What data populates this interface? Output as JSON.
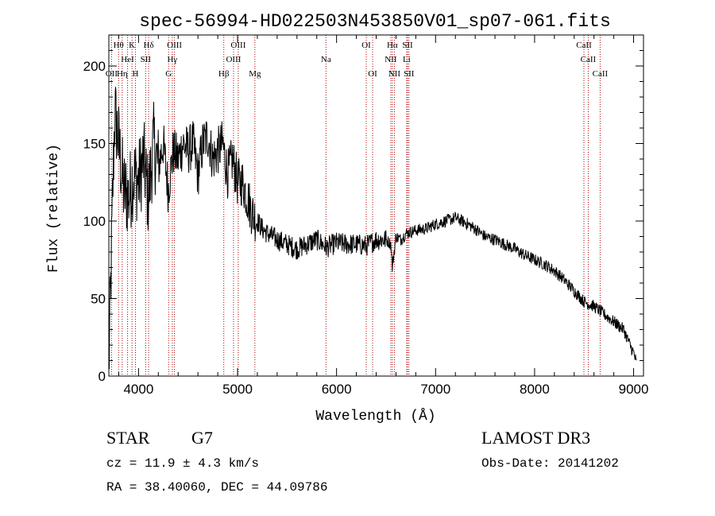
{
  "colors": {
    "spectrum": "#000000",
    "line_marker": "#b00000",
    "axes": "#000000"
  },
  "chart_data": {
    "type": "line",
    "title": "spec-56994-HD022503N453850V01_sp07-061.fits",
    "xlabel": "Wavelength (Å)",
    "ylabel": "Flux (relative)",
    "xlim": [
      3700,
      9100
    ],
    "ylim": [
      0,
      220
    ],
    "xticks": [
      {
        "value": 4000,
        "label": "4000"
      },
      {
        "value": 5000,
        "label": "5000"
      },
      {
        "value": 6000,
        "label": "6000"
      },
      {
        "value": 7000,
        "label": "7000"
      },
      {
        "value": 8000,
        "label": "8000"
      },
      {
        "value": 9000,
        "label": "9000"
      }
    ],
    "yticks": [
      {
        "value": 0,
        "label": "0"
      },
      {
        "value": 50,
        "label": "50"
      },
      {
        "value": 100,
        "label": "100"
      },
      {
        "value": 150,
        "label": "150"
      },
      {
        "value": 200,
        "label": "200"
      }
    ],
    "series": [
      {
        "name": "flux",
        "x": [
          3700,
          3720,
          3740,
          3760,
          3800,
          3850,
          3900,
          3950,
          4000,
          4050,
          4100,
          4150,
          4200,
          4250,
          4300,
          4350,
          4400,
          4450,
          4500,
          4550,
          4600,
          4650,
          4700,
          4750,
          4800,
          4850,
          4900,
          4950,
          5000,
          5050,
          5100,
          5150,
          5200,
          5250,
          5300,
          5400,
          5500,
          5600,
          5700,
          5800,
          5900,
          6000,
          6100,
          6200,
          6300,
          6400,
          6500,
          6550,
          6563,
          6600,
          6650,
          6700,
          6800,
          6900,
          7000,
          7100,
          7200,
          7300,
          7400,
          7500,
          7600,
          7700,
          7800,
          7900,
          8000,
          8100,
          8200,
          8300,
          8400,
          8500,
          8600,
          8700,
          8800,
          8900,
          8950,
          9000,
          9030
        ],
        "values": [
          5,
          60,
          120,
          170,
          150,
          120,
          115,
          130,
          125,
          140,
          115,
          150,
          135,
          150,
          120,
          145,
          140,
          150,
          145,
          150,
          130,
          150,
          155,
          140,
          145,
          150,
          130,
          140,
          125,
          125,
          115,
          105,
          100,
          95,
          92,
          88,
          85,
          82,
          85,
          88,
          83,
          86,
          85,
          85,
          84,
          88,
          88,
          85,
          70,
          90,
          88,
          92,
          94,
          95,
          98,
          100,
          102,
          99,
          95,
          90,
          88,
          85,
          82,
          78,
          75,
          72,
          68,
          62,
          55,
          48,
          45,
          40,
          35,
          30,
          22,
          15,
          8
        ]
      }
    ],
    "line_markers": [
      {
        "label": "Hθ",
        "wavelength": 3798,
        "row": 0
      },
      {
        "label": "OII",
        "wavelength": 3727,
        "row": 2
      },
      {
        "label": "Hη",
        "wavelength": 3835,
        "row": 2
      },
      {
        "label": "HeI",
        "wavelength": 3889,
        "row": 1
      },
      {
        "label": "K",
        "wavelength": 3934,
        "row": 0
      },
      {
        "label": "H",
        "wavelength": 3969,
        "row": 2
      },
      {
        "label": "SII",
        "wavelength": 4072,
        "row": 1
      },
      {
        "label": "Hδ",
        "wavelength": 4102,
        "row": 0
      },
      {
        "label": "OIII",
        "wavelength": 4363,
        "row": 0
      },
      {
        "label": "Hγ",
        "wavelength": 4341,
        "row": 1
      },
      {
        "label": "G",
        "wavelength": 4304,
        "row": 2
      },
      {
        "label": "Hβ",
        "wavelength": 4861,
        "row": 2
      },
      {
        "label": "OIII",
        "wavelength": 5007,
        "row": 0
      },
      {
        "label": "OIII",
        "wavelength": 4959,
        "row": 1
      },
      {
        "label": "Mg",
        "wavelength": 5175,
        "row": 2
      },
      {
        "label": "Na",
        "wavelength": 5893,
        "row": 1
      },
      {
        "label": "OI",
        "wavelength": 6300,
        "row": 0
      },
      {
        "label": "OI",
        "wavelength": 6364,
        "row": 2
      },
      {
        "label": "Hα",
        "wavelength": 6563,
        "row": 0
      },
      {
        "label": "NII",
        "wavelength": 6548,
        "row": 1
      },
      {
        "label": "NII",
        "wavelength": 6584,
        "row": 2
      },
      {
        "label": "SII",
        "wavelength": 6717,
        "row": 0
      },
      {
        "label": "Li",
        "wavelength": 6708,
        "row": 1
      },
      {
        "label": "SII",
        "wavelength": 6731,
        "row": 2
      },
      {
        "label": "CaII",
        "wavelength": 8498,
        "row": 0
      },
      {
        "label": "CaII",
        "wavelength": 8542,
        "row": 1
      },
      {
        "label": "CaII",
        "wavelength": 8662,
        "row": 2
      }
    ]
  },
  "info": {
    "object_type": "STAR",
    "subclass": "G7",
    "survey": "LAMOST DR3",
    "redshift": "cz = 11.9 ± 4.3 km/s",
    "obs_date": "Obs-Date: 20141202",
    "coords": "RA =  38.40060, DEC =  44.09786"
  }
}
